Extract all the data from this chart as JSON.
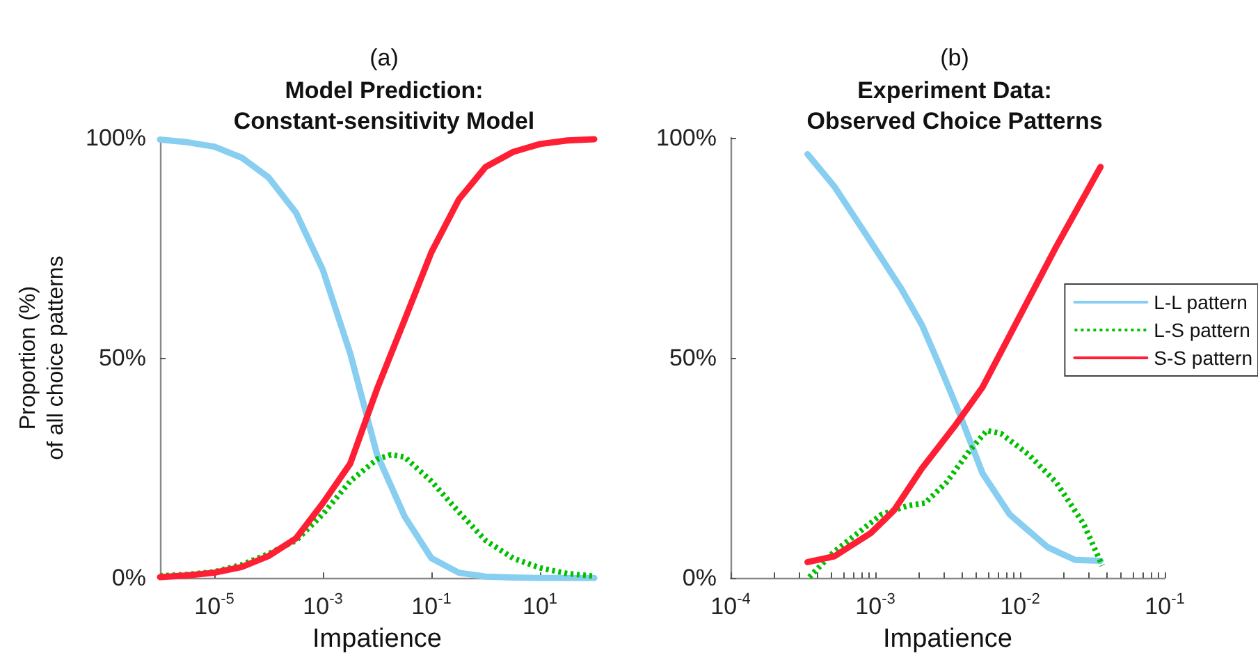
{
  "chart_data": [
    {
      "type": "line",
      "subtitle": "(a)",
      "title": "Model Prediction:\nConstant-sensitivity Model",
      "xlabel": "Impatience",
      "ylabel": "Proportion (%)\nof all choice patterns",
      "log": "x",
      "xlim": [
        1e-06,
        100
      ],
      "xticks": [
        {
          "value": 1e-05,
          "label": "10$^{-5}$"
        },
        {
          "value": 0.001,
          "label": "10$^{-3}$"
        },
        {
          "value": 0.1,
          "label": "10$^{-1}$"
        },
        {
          "value": 10,
          "label": "10$^{1}$"
        }
      ],
      "ylim": [
        0,
        100
      ],
      "yticks": [
        {
          "value": 0,
          "label": "0%"
        },
        {
          "value": 50,
          "label": "50%"
        },
        {
          "value": 100,
          "label": "100%"
        }
      ],
      "grid": false,
      "legend": false,
      "series": [
        {
          "color": "#87cef0",
          "line_style": "solid",
          "x": [
            1e-06,
            3.2e-06,
            1e-05,
            3.2e-05,
            0.0001,
            0.00032,
            0.001,
            0.0032,
            0.01,
            0.032,
            0.1,
            0.32,
            1,
            3.2,
            10,
            32,
            100
          ],
          "values": [
            99.6,
            99,
            98,
            95.5,
            91,
            83,
            70,
            51,
            28,
            14,
            4.5,
            1.2,
            0.3,
            0.1,
            0,
            0,
            0
          ]
        },
        {
          "color": "#00c000",
          "line_style": "dotted",
          "x": [
            1e-06,
            3.2e-06,
            1e-05,
            3.2e-05,
            0.0001,
            0.00032,
            0.001,
            0.0032,
            0.01,
            0.018,
            0.032,
            0.1,
            0.32,
            1,
            3.2,
            10,
            32,
            100
          ],
          "values": [
            0.5,
            0.8,
            1.4,
            3,
            5.5,
            8.5,
            14.5,
            22,
            27,
            28,
            27.5,
            22,
            15,
            8.5,
            4.5,
            2.3,
            1,
            0.4
          ]
        },
        {
          "color": "#ff1f35",
          "line_style": "solid",
          "x": [
            1e-06,
            3.2e-06,
            1e-05,
            3.2e-05,
            0.0001,
            0.00032,
            0.001,
            0.0032,
            0.01,
            0.032,
            0.1,
            0.32,
            1,
            3.2,
            10,
            32,
            100
          ],
          "values": [
            0.2,
            0.6,
            1.2,
            2.5,
            5,
            9,
            17,
            26,
            43,
            58.6,
            74,
            86,
            93.4,
            96.8,
            98.6,
            99.4,
            99.7
          ]
        }
      ]
    },
    {
      "type": "line",
      "subtitle": "(b)",
      "title": "Experiment Data:\nObserved Choice Patterns",
      "xlabel": "Impatience",
      "log": "x",
      "xlim": [
        0.0001,
        0.1
      ],
      "xticks": [
        {
          "value": 0.0001,
          "label": "10$^{-4}$"
        },
        {
          "value": 0.0002,
          "label": null
        },
        {
          "value": 0.0003,
          "label": null
        },
        {
          "value": 0.0004,
          "label": null
        },
        {
          "value": 0.0005,
          "label": null
        },
        {
          "value": 0.0006,
          "label": null
        },
        {
          "value": 0.0007,
          "label": null
        },
        {
          "value": 0.0008,
          "label": null
        },
        {
          "value": 0.0009,
          "label": null
        },
        {
          "value": 0.001,
          "label": "10$^{-3}$"
        },
        {
          "value": 0.002,
          "label": null
        },
        {
          "value": 0.003,
          "label": null
        },
        {
          "value": 0.004,
          "label": null
        },
        {
          "value": 0.005,
          "label": null
        },
        {
          "value": 0.006,
          "label": null
        },
        {
          "value": 0.007,
          "label": null
        },
        {
          "value": 0.008,
          "label": null
        },
        {
          "value": 0.009,
          "label": null
        },
        {
          "value": 0.01,
          "label": "10$^{-2}$"
        },
        {
          "value": 0.02,
          "label": null
        },
        {
          "value": 0.03,
          "label": null
        },
        {
          "value": 0.04,
          "label": null
        },
        {
          "value": 0.05,
          "label": null
        },
        {
          "value": 0.06,
          "label": null
        },
        {
          "value": 0.07,
          "label": null
        },
        {
          "value": 0.08,
          "label": null
        },
        {
          "value": 0.09,
          "label": null
        },
        {
          "value": 0.1,
          "label": "10$^{-1}$"
        }
      ],
      "ylim": [
        0,
        100
      ],
      "yticks": [
        {
          "value": 0,
          "label": "0%"
        },
        {
          "value": 50,
          "label": "50%"
        },
        {
          "value": 100,
          "label": "100%"
        }
      ],
      "grid": false,
      "legend": "right",
      "series": [
        {
          "name": "L-L pattern",
          "color": "#87cef0",
          "line_style": "solid",
          "x": [
            0.00034,
            0.00052,
            0.00093,
            0.0015,
            0.0021,
            0.0028,
            0.0038,
            0.0055,
            0.0085,
            0.0155,
            0.024,
            0.036
          ],
          "values": [
            96.3,
            89,
            76.4,
            65.9,
            57.5,
            48,
            37.5,
            23.8,
            14.4,
            7,
            4.1,
            3.9
          ]
        },
        {
          "name": "L-S pattern",
          "color": "#00c000",
          "line_style": "dotted",
          "x": [
            0.00035,
            0.00052,
            0.0011,
            0.0017,
            0.0022,
            0.0031,
            0.0045,
            0.0059,
            0.0074,
            0.0115,
            0.0178,
            0.0275,
            0.037
          ],
          "values": [
            0.2,
            6,
            14.4,
            16.5,
            17,
            21.7,
            29,
            33.5,
            32.8,
            28,
            21.7,
            12.3,
            2.8
          ]
        },
        {
          "name": "S-S pattern",
          "color": "#ff1f35",
          "line_style": "solid",
          "x": [
            0.00034,
            0.00052,
            0.00093,
            0.00135,
            0.0021,
            0.0035,
            0.0055,
            0.01,
            0.0178,
            0.036
          ],
          "values": [
            3.6,
            4.9,
            10.2,
            15.4,
            24.9,
            34.3,
            43.3,
            59.6,
            75.3,
            93.4
          ]
        }
      ]
    }
  ]
}
